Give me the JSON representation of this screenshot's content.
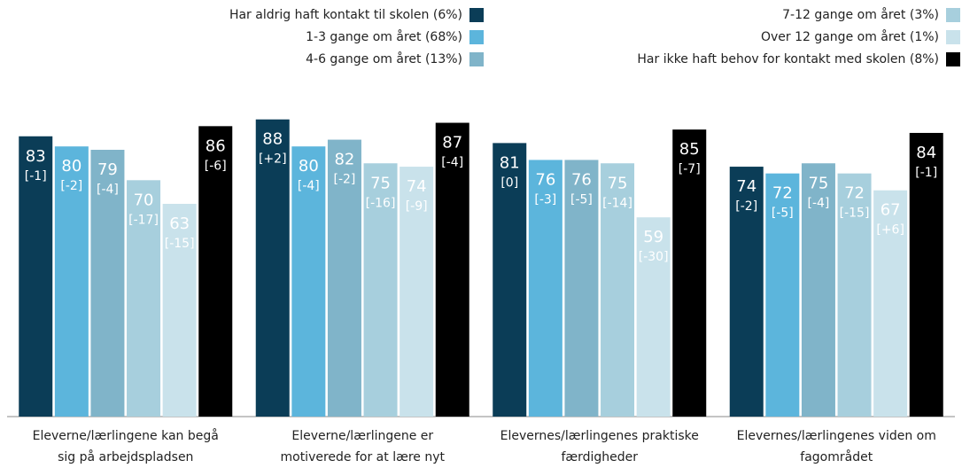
{
  "chart_data": {
    "type": "bar",
    "categories": [
      [
        "Eleverne/lærlingene kan begå",
        "sig på arbejdspladsen"
      ],
      [
        "Eleverne/lærlingene er",
        "motiverede for at lære nyt"
      ],
      [
        "Elevernes/lærlingenes praktiske",
        "færdigheder"
      ],
      [
        "Elevernes/lærlingenes viden om",
        "fagområdet"
      ]
    ],
    "ylim": [
      0,
      100
    ],
    "series": [
      {
        "name": "Har aldrig haft kontakt til skolen (6%)",
        "color": "#0b3d57",
        "values": [
          83,
          88,
          81,
          74
        ],
        "change_labels": [
          "[-1]",
          "[+2]",
          "[0]",
          "[-2]"
        ]
      },
      {
        "name": "1-3 gange om året (68%)",
        "color": "#5cb5dc",
        "values": [
          80,
          80,
          76,
          72
        ],
        "change_labels": [
          "[-2]",
          "[-4]",
          "[-3]",
          "[-5]"
        ]
      },
      {
        "name": "4-6 gange om året (13%)",
        "color": "#80b4c9",
        "values": [
          79,
          82,
          76,
          75
        ],
        "change_labels": [
          "[-4]",
          "[-2]",
          "[-5]",
          "[-4]"
        ]
      },
      {
        "name": "7-12 gange om året (3%)",
        "color": "#a7cfdd",
        "values": [
          70,
          75,
          75,
          72
        ],
        "change_labels": [
          "[-17]",
          "[-16]",
          "[-14]",
          "[-15]"
        ]
      },
      {
        "name": "Over 12 gange om året (1%)",
        "color": "#c9e2eb",
        "values": [
          63,
          74,
          59,
          67
        ],
        "change_labels": [
          "[-15]",
          "[-9]",
          "[-30]",
          "[+6]"
        ]
      },
      {
        "name": "Har ikke haft behov for kontakt med skolen (8%)",
        "color": "#000000",
        "values": [
          86,
          87,
          85,
          84
        ],
        "change_labels": [
          "[-6]",
          "[-4]",
          "[-7]",
          "[-1]"
        ]
      }
    ]
  }
}
